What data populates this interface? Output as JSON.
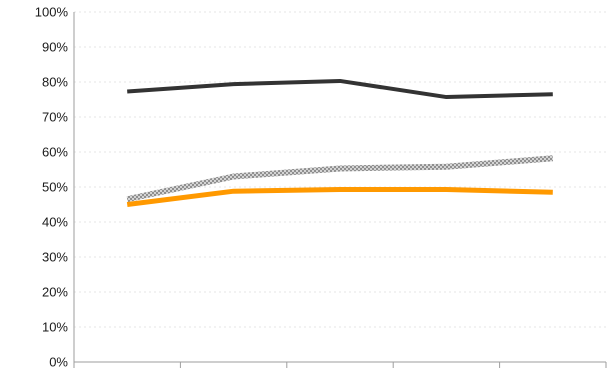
{
  "chart_data": {
    "type": "line",
    "title": "",
    "xlabel": "",
    "ylabel": "",
    "categories": [
      "",
      "",
      "",
      "",
      ""
    ],
    "ylim": [
      0,
      100
    ],
    "y_tick_labels": [
      "0%",
      "10%",
      "20%",
      "30%",
      "40%",
      "50%",
      "60%",
      "70%",
      "80%",
      "90%",
      "100%"
    ],
    "grid": true,
    "legend": "none",
    "series": [
      {
        "values": [
          77.3,
          79.4,
          80.3,
          75.7,
          76.5
        ],
        "color": "#333333",
        "style": "solid"
      },
      {
        "values": [
          46.5,
          53.0,
          55.3,
          55.8,
          58.2
        ],
        "color": "#bdbdbd",
        "style": "hatched"
      },
      {
        "values": [
          45.0,
          48.8,
          49.3,
          49.3,
          48.5
        ],
        "color": "#ff9900",
        "style": "solid"
      }
    ]
  }
}
